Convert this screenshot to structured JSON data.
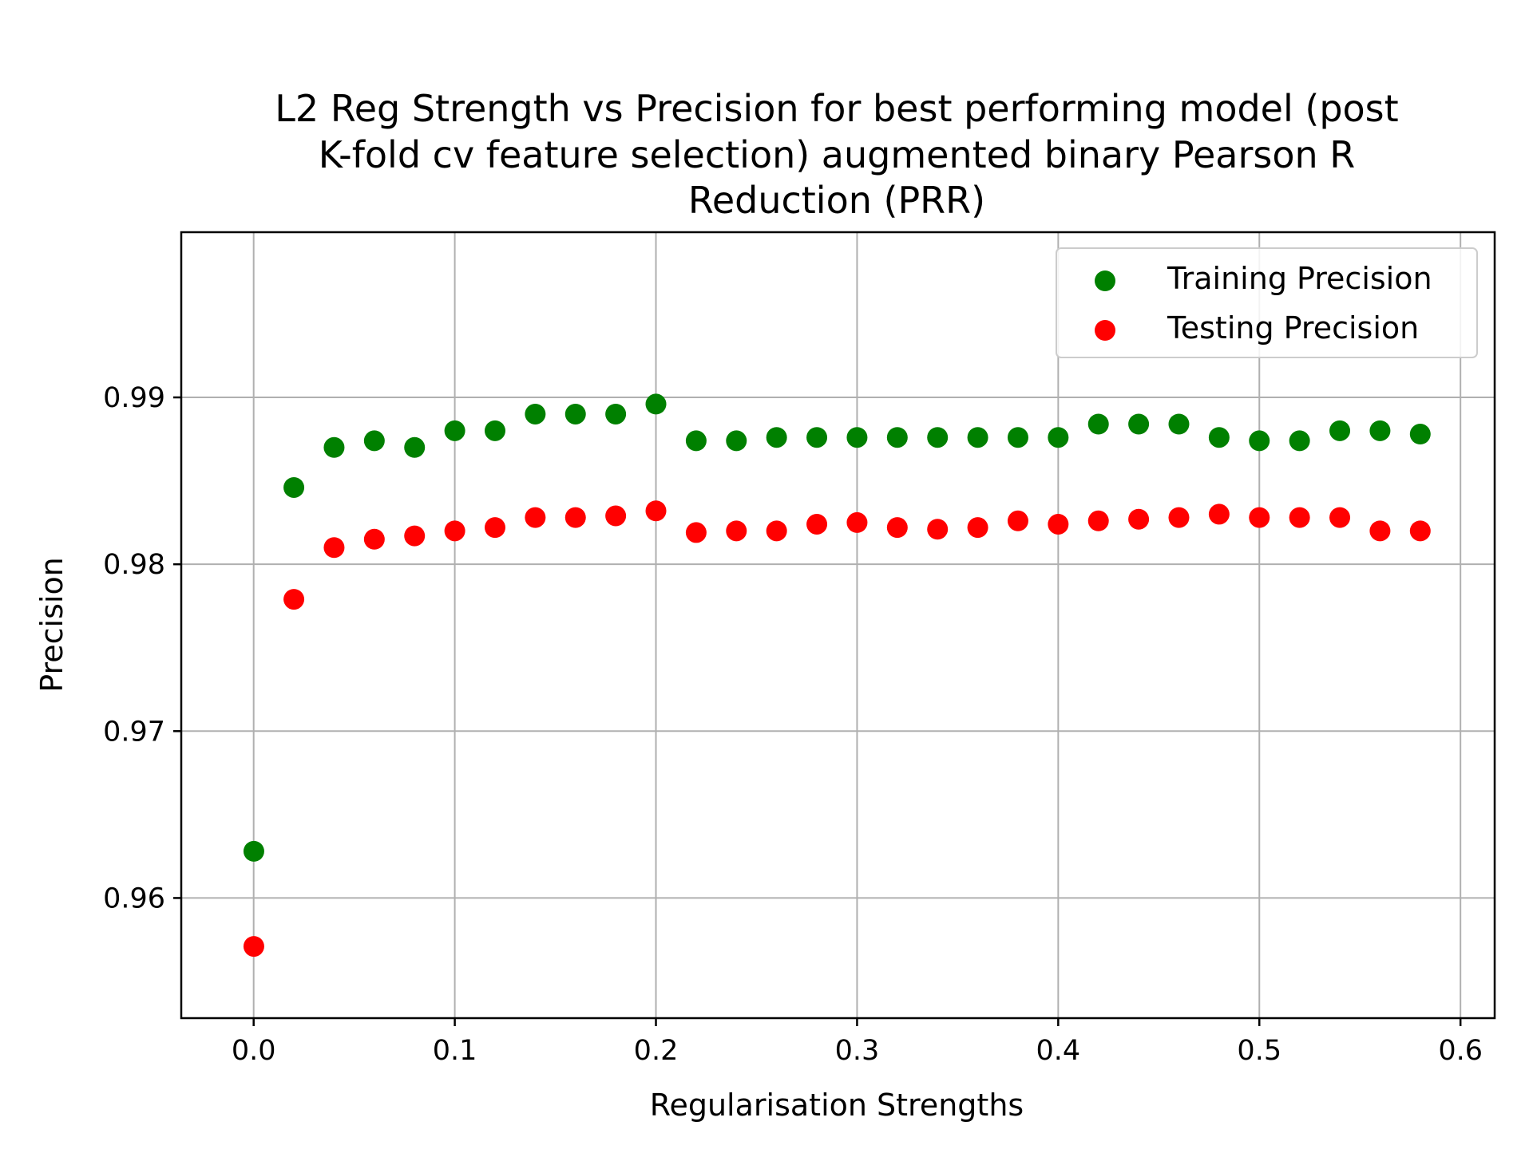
{
  "chart_data": {
    "type": "scatter",
    "title_lines": [
      "L2 Reg Strength vs Precision for best performing model (post",
      "K-fold cv feature selection) augmented binary Pearson R",
      "Reduction (PRR)"
    ],
    "xlabel": "Regularisation Strengths",
    "ylabel": "Precision",
    "xlim": [
      -0.036,
      0.617
    ],
    "ylim": [
      0.9528,
      0.9999
    ],
    "x_ticks": [
      0.0,
      0.1,
      0.2,
      0.3,
      0.4,
      0.5,
      0.6
    ],
    "x_tick_labels": [
      "0.0",
      "0.1",
      "0.2",
      "0.3",
      "0.4",
      "0.5",
      "0.6"
    ],
    "y_ticks": [
      0.96,
      0.97,
      0.98,
      0.99
    ],
    "y_tick_labels": [
      "0.96",
      "0.97",
      "0.98",
      "0.99"
    ],
    "grid": true,
    "legend_position": "top-right",
    "x": [
      0.0001,
      0.02,
      0.04,
      0.06,
      0.08,
      0.1,
      0.12,
      0.14,
      0.16,
      0.18,
      0.2,
      0.22,
      0.24,
      0.26,
      0.28,
      0.3,
      0.32,
      0.34,
      0.36,
      0.38,
      0.4,
      0.42,
      0.44,
      0.46,
      0.48,
      0.5,
      0.52,
      0.54,
      0.56,
      0.58
    ],
    "series": [
      {
        "name": "Training Precision",
        "color": "#008000",
        "values": [
          0.9628,
          0.9846,
          0.987,
          0.9874,
          0.987,
          0.988,
          0.988,
          0.989,
          0.989,
          0.989,
          0.9896,
          0.9874,
          0.9874,
          0.9876,
          0.9876,
          0.9876,
          0.9876,
          0.9876,
          0.9876,
          0.9876,
          0.9876,
          0.9884,
          0.9884,
          0.9884,
          0.9876,
          0.9874,
          0.9874,
          0.988,
          0.988,
          0.9878
        ]
      },
      {
        "name": "Testing Precision",
        "color": "#ff0000",
        "values": [
          0.9571,
          0.9779,
          0.981,
          0.9815,
          0.9817,
          0.982,
          0.9822,
          0.9828,
          0.9828,
          0.9829,
          0.9832,
          0.9819,
          0.982,
          0.982,
          0.9824,
          0.9825,
          0.9822,
          0.9821,
          0.9822,
          0.9826,
          0.9824,
          0.9826,
          0.9827,
          0.9828,
          0.983,
          0.9828,
          0.9828,
          0.9828,
          0.982,
          0.982
        ]
      }
    ]
  }
}
